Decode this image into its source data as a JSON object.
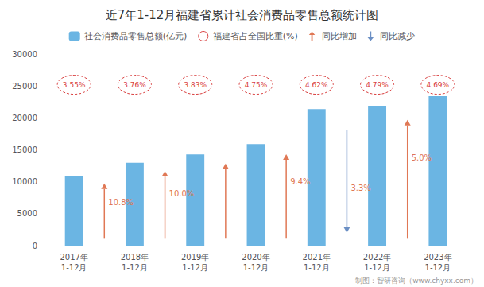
{
  "chart_data": {
    "type": "bar",
    "title": "近7年1-12月福建省累计社会消费品零售总额统计图",
    "categories": [
      "2017年\n1-12月",
      "2018年\n1-12月",
      "2019年\n1-12月",
      "2020年\n1-12月",
      "2021年\n1-12月",
      "2022年\n1-12月",
      "2023年\n1-12月"
    ],
    "series": [
      {
        "name": "社会消费品零售总额(亿元)",
        "color": "#6BB5E3",
        "values": [
          10823,
          12988,
          14285,
          15918,
          21389,
          21900,
          23409
        ]
      }
    ],
    "ratio_labels": {
      "name": "福建省占全国比重(%)",
      "color": "#D94040",
      "labels": [
        "3.55%",
        "3.76%",
        "3.83%",
        "4.75%",
        "4.62%",
        "4.79%",
        "4.69%"
      ]
    },
    "yoy": {
      "text_color": "#E07855",
      "up": {
        "name": "同比增加",
        "color": "#E07855"
      },
      "down": {
        "name": "同比减少",
        "color": "#6B8FC4"
      },
      "items": [
        {
          "text": "10.8%",
          "direction": "up"
        },
        {
          "text": "10.0%",
          "direction": "up"
        },
        {
          "direction": "up"
        },
        {
          "text": "9.4%",
          "direction": "up"
        },
        {
          "text": "3.3%",
          "direction": "down"
        },
        {
          "text": "5.0%",
          "direction": "up"
        }
      ]
    },
    "ylim": [
      0,
      30000
    ],
    "yticks": [
      0,
      5000,
      10000,
      15000,
      20000,
      25000,
      30000
    ],
    "grid": false,
    "legend": "top",
    "footer": "制图：智研咨询（www.chyxx.com）"
  }
}
